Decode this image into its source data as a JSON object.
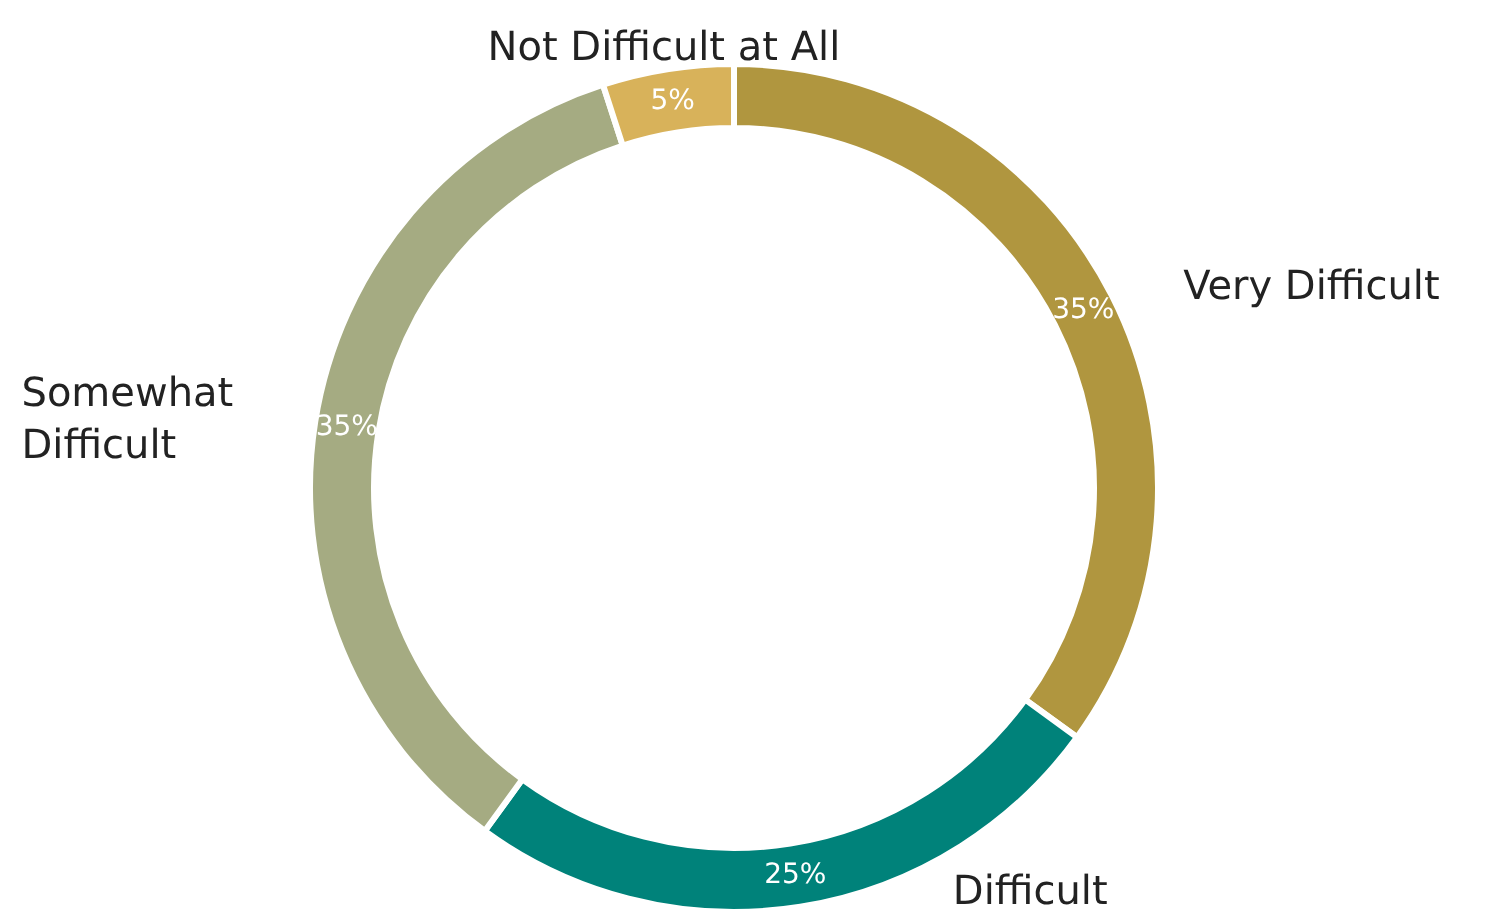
{
  "chart_data": {
    "type": "donut",
    "categories": [
      "Very Difficult",
      "Difficult",
      "Somewhat Difficult",
      "Not Difficult at All"
    ],
    "values": [
      35,
      25,
      35,
      5
    ],
    "colors": [
      "#b0963f",
      "#00827a",
      "#a5ab82",
      "#d8b25a"
    ],
    "value_labels": [
      "35%",
      "25%",
      "35%",
      "5%"
    ],
    "legend": false
  }
}
